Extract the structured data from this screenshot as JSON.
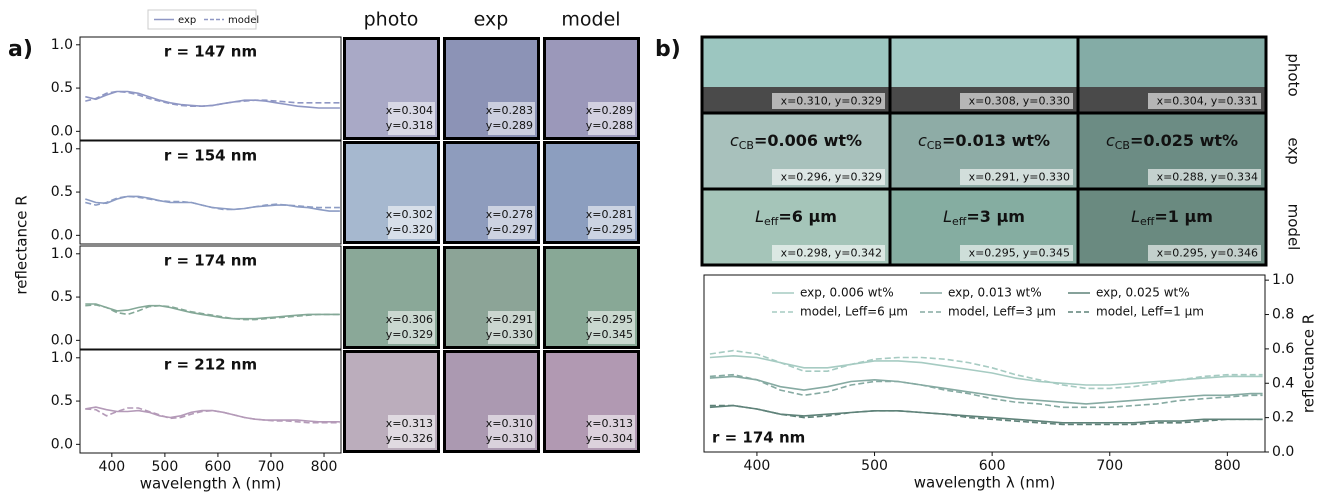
{
  "panel_labels": [
    "a)",
    "b)"
  ],
  "chart_data": [
    {
      "type": "line",
      "title": "r = 147 nm",
      "legend": "above",
      "ylabel": "reflectance R",
      "x": [
        350,
        370,
        390,
        410,
        430,
        450,
        470,
        490,
        510,
        530,
        550,
        570,
        590,
        610,
        630,
        650,
        670,
        690,
        710,
        730,
        750,
        770,
        790,
        810,
        830
      ],
      "xlim": [
        340,
        832
      ],
      "ylim": [
        -0.1,
        1.09
      ],
      "yticks": [
        {
          "value": 0,
          "label": "0.0"
        },
        0.5,
        {
          "value": 1,
          "label": "1.0"
        }
      ],
      "series": [
        {
          "name": "exp",
          "color": "#8f97c4",
          "dash": false,
          "values": [
            0.4,
            0.37,
            0.42,
            0.46,
            0.46,
            0.44,
            0.4,
            0.36,
            0.33,
            0.31,
            0.3,
            0.29,
            0.3,
            0.32,
            0.34,
            0.36,
            0.36,
            0.35,
            0.33,
            0.31,
            0.29,
            0.28,
            0.27,
            0.27,
            0.27
          ]
        },
        {
          "name": "model",
          "color": "#8f97c4",
          "dash": true,
          "values": [
            0.35,
            0.38,
            0.44,
            0.46,
            0.45,
            0.42,
            0.38,
            0.35,
            0.32,
            0.3,
            0.29,
            0.29,
            0.3,
            0.32,
            0.34,
            0.35,
            0.36,
            0.36,
            0.35,
            0.34,
            0.33,
            0.33,
            0.33,
            0.33,
            0.33
          ]
        }
      ]
    },
    {
      "type": "line",
      "title": "r = 154 nm",
      "x": [
        350,
        370,
        390,
        410,
        430,
        450,
        470,
        490,
        510,
        530,
        550,
        570,
        590,
        610,
        630,
        650,
        670,
        690,
        710,
        730,
        750,
        770,
        790,
        810,
        830
      ],
      "xlim": [
        340,
        832
      ],
      "ylim": [
        -0.1,
        1.09
      ],
      "yticks": [
        {
          "value": 0,
          "label": "0.0"
        },
        0.5,
        {
          "value": 1,
          "label": "1.0"
        }
      ],
      "series": [
        {
          "color": "#8c9cc4",
          "dash": false,
          "values": [
            0.42,
            0.38,
            0.37,
            0.42,
            0.45,
            0.45,
            0.43,
            0.4,
            0.38,
            0.38,
            0.38,
            0.35,
            0.32,
            0.31,
            0.3,
            0.31,
            0.33,
            0.34,
            0.35,
            0.35,
            0.33,
            0.32,
            0.3,
            0.28,
            0.28
          ]
        },
        {
          "color": "#8c9cc4",
          "dash": true,
          "values": [
            0.38,
            0.35,
            0.38,
            0.43,
            0.45,
            0.44,
            0.42,
            0.4,
            0.39,
            0.39,
            0.38,
            0.35,
            0.32,
            0.3,
            0.3,
            0.31,
            0.33,
            0.35,
            0.36,
            0.35,
            0.34,
            0.33,
            0.32,
            0.32,
            0.32
          ]
        }
      ]
    },
    {
      "type": "line",
      "title": "r = 174 nm",
      "x": [
        350,
        370,
        390,
        410,
        430,
        450,
        470,
        490,
        510,
        530,
        550,
        570,
        590,
        610,
        630,
        650,
        670,
        690,
        710,
        730,
        750,
        770,
        790,
        810,
        830
      ],
      "xlim": [
        340,
        832
      ],
      "ylim": [
        -0.1,
        1.09
      ],
      "yticks": [
        {
          "value": 0,
          "label": "0.0"
        },
        0.5,
        {
          "value": 1,
          "label": "1.0"
        }
      ],
      "series": [
        {
          "color": "#84a897",
          "dash": false,
          "values": [
            0.42,
            0.42,
            0.38,
            0.34,
            0.35,
            0.38,
            0.4,
            0.4,
            0.38,
            0.35,
            0.32,
            0.3,
            0.28,
            0.26,
            0.25,
            0.25,
            0.25,
            0.26,
            0.27,
            0.28,
            0.29,
            0.3,
            0.3,
            0.3,
            0.3
          ]
        },
        {
          "color": "#84a897",
          "dash": true,
          "values": [
            0.4,
            0.41,
            0.38,
            0.32,
            0.3,
            0.34,
            0.39,
            0.4,
            0.39,
            0.36,
            0.33,
            0.31,
            0.29,
            0.27,
            0.25,
            0.24,
            0.24,
            0.25,
            0.26,
            0.27,
            0.28,
            0.29,
            0.3,
            0.3,
            0.3
          ]
        }
      ]
    },
    {
      "type": "line",
      "title": "r = 212 nm",
      "xlabel": "wavelength λ (nm)",
      "x": [
        350,
        370,
        390,
        410,
        430,
        450,
        470,
        490,
        510,
        530,
        550,
        570,
        590,
        610,
        630,
        650,
        670,
        690,
        710,
        730,
        750,
        770,
        790,
        810,
        830
      ],
      "xlim": [
        340,
        832
      ],
      "ylim": [
        -0.1,
        1.09
      ],
      "xticks": [
        400,
        500,
        600,
        700,
        800
      ],
      "yticks": [
        {
          "value": 0,
          "label": "0.0"
        },
        0.5,
        {
          "value": 1,
          "label": "1.0"
        }
      ],
      "series": [
        {
          "color": "#b49ab8",
          "dash": false,
          "values": [
            0.41,
            0.43,
            0.4,
            0.38,
            0.38,
            0.39,
            0.37,
            0.33,
            0.31,
            0.33,
            0.37,
            0.39,
            0.39,
            0.37,
            0.34,
            0.31,
            0.29,
            0.28,
            0.28,
            0.28,
            0.28,
            0.27,
            0.26,
            0.26,
            0.26
          ]
        },
        {
          "color": "#b49ab8",
          "dash": true,
          "values": [
            0.41,
            0.4,
            0.33,
            0.38,
            0.42,
            0.42,
            0.38,
            0.34,
            0.3,
            0.31,
            0.35,
            0.38,
            0.39,
            0.37,
            0.34,
            0.31,
            0.29,
            0.28,
            0.27,
            0.27,
            0.26,
            0.25,
            0.25,
            0.25,
            0.25
          ]
        }
      ]
    },
    {
      "type": "line",
      "annotation": "r = 174 nm",
      "legend": "upper center",
      "yaxis": "right",
      "xlabel": "wavelength λ (nm)",
      "ylabel": "reflectance R",
      "x": [
        360,
        380,
        400,
        420,
        440,
        460,
        480,
        500,
        520,
        540,
        560,
        580,
        600,
        620,
        640,
        660,
        680,
        700,
        720,
        740,
        760,
        780,
        800,
        820,
        830
      ],
      "xlim": [
        355,
        832
      ],
      "ylim": [
        0,
        1.03
      ],
      "xticks": [
        400,
        500,
        600,
        700,
        800
      ],
      "yticks": [
        {
          "value": 0,
          "label": "0.0"
        },
        0.2,
        0.4,
        0.6,
        0.8,
        {
          "value": 1,
          "label": "1.0"
        }
      ],
      "series": [
        {
          "name": "exp, 0.006 wt%",
          "color": "#a6cbc2",
          "dash": false,
          "values": [
            0.55,
            0.56,
            0.55,
            0.52,
            0.49,
            0.49,
            0.51,
            0.53,
            0.53,
            0.52,
            0.5,
            0.48,
            0.46,
            0.43,
            0.41,
            0.4,
            0.39,
            0.39,
            0.4,
            0.41,
            0.42,
            0.43,
            0.44,
            0.44,
            0.44
          ]
        },
        {
          "name": "model, Leff=6 µm",
          "color": "#a6cbc2",
          "dash": true,
          "values": [
            0.57,
            0.59,
            0.57,
            0.52,
            0.47,
            0.47,
            0.51,
            0.54,
            0.55,
            0.55,
            0.54,
            0.52,
            0.49,
            0.45,
            0.42,
            0.39,
            0.37,
            0.37,
            0.38,
            0.4,
            0.42,
            0.44,
            0.45,
            0.45,
            0.45
          ]
        },
        {
          "name": "exp, 0.013 wt%",
          "color": "#86aaa2",
          "dash": false,
          "values": [
            0.43,
            0.44,
            0.42,
            0.38,
            0.36,
            0.38,
            0.41,
            0.42,
            0.41,
            0.39,
            0.37,
            0.35,
            0.33,
            0.31,
            0.3,
            0.29,
            0.28,
            0.29,
            0.3,
            0.31,
            0.32,
            0.33,
            0.33,
            0.34,
            0.34
          ]
        },
        {
          "name": "model, Leff=3 µm",
          "color": "#86aaa2",
          "dash": true,
          "values": [
            0.44,
            0.45,
            0.42,
            0.36,
            0.33,
            0.35,
            0.39,
            0.41,
            0.41,
            0.39,
            0.36,
            0.34,
            0.31,
            0.29,
            0.28,
            0.26,
            0.26,
            0.26,
            0.27,
            0.28,
            0.3,
            0.31,
            0.32,
            0.33,
            0.33
          ]
        },
        {
          "name": "exp, 0.025 wt%",
          "color": "#5f8279",
          "dash": false,
          "values": [
            0.26,
            0.27,
            0.25,
            0.22,
            0.21,
            0.22,
            0.23,
            0.24,
            0.24,
            0.23,
            0.22,
            0.21,
            0.2,
            0.19,
            0.18,
            0.17,
            0.17,
            0.17,
            0.17,
            0.18,
            0.18,
            0.19,
            0.19,
            0.19,
            0.19
          ]
        },
        {
          "name": "model, Leff=1 µm",
          "color": "#5f8279",
          "dash": true,
          "values": [
            0.27,
            0.27,
            0.25,
            0.22,
            0.2,
            0.21,
            0.23,
            0.24,
            0.24,
            0.23,
            0.22,
            0.2,
            0.19,
            0.18,
            0.17,
            0.16,
            0.16,
            0.16,
            0.16,
            0.17,
            0.17,
            0.18,
            0.19,
            0.19,
            0.19
          ]
        }
      ]
    }
  ],
  "swatches_a": {
    "columns": [
      "photo",
      "exp",
      "model"
    ],
    "rows": [
      [
        {
          "color": "#a9a9c6",
          "x": "x=0.304",
          "y": "y=0.318"
        },
        {
          "color": "#8c93b6",
          "x": "x=0.283",
          "y": "y=0.289"
        },
        {
          "color": "#9b98ba",
          "x": "x=0.289",
          "y": "y=0.288"
        }
      ],
      [
        {
          "color": "#a6b8cf",
          "x": "x=0.302",
          "y": "y=0.320"
        },
        {
          "color": "#8e9cbd",
          "x": "x=0.278",
          "y": "y=0.297"
        },
        {
          "color": "#8c9ebf",
          "x": "x=0.281",
          "y": "y=0.295"
        }
      ],
      [
        {
          "color": "#8aa898",
          "x": "x=0.306",
          "y": "y=0.329"
        },
        {
          "color": "#8ca497",
          "x": "x=0.291",
          "y": "y=0.330"
        },
        {
          "color": "#88a896",
          "x": "x=0.295",
          "y": "y=0.345"
        }
      ],
      [
        {
          "color": "#bbadbc",
          "x": "x=0.313",
          "y": "y=0.326"
        },
        {
          "color": "#ab99b1",
          "x": "x=0.310",
          "y": "y=0.310"
        },
        {
          "color": "#b199b2",
          "x": "x=0.313",
          "y": "y=0.304"
        }
      ]
    ]
  },
  "swatches_b": {
    "rows": [
      {
        "label": "photo",
        "cells": [
          {
            "color": "#9cc6c0",
            "coords": "x=0.310, y=0.329"
          },
          {
            "color": "#a2c9c4",
            "coords": "x=0.308, y=0.330"
          },
          {
            "color": "#84aca6",
            "coords": "x=0.304, y=0.331"
          }
        ]
      },
      {
        "label": "exp",
        "cells": [
          {
            "color": "#a8c1bc",
            "heading": {
              "symbol": "c",
              "subscript": "CB",
              "value": "=0.006 wt%"
            },
            "coords": "x=0.296, y=0.329"
          },
          {
            "color": "#8eaca6",
            "heading": {
              "symbol": "c",
              "subscript": "CB",
              "value": "=0.013 wt%"
            },
            "coords": "x=0.291, y=0.330"
          },
          {
            "color": "#6c8c84",
            "heading": {
              "symbol": "c",
              "subscript": "CB",
              "value": "=0.025 wt%"
            },
            "coords": "x=0.288, y=0.334"
          }
        ]
      },
      {
        "label": "model",
        "cells": [
          {
            "color": "#a5c5b9",
            "heading": {
              "symbol": "L",
              "subscript": "eff",
              "value": "=6 µm"
            },
            "coords": "x=0.298, y=0.342"
          },
          {
            "color": "#85ada1",
            "heading": {
              "symbol": "L",
              "subscript": "eff",
              "value": "=3 µm"
            },
            "coords": "x=0.295, y=0.345"
          },
          {
            "color": "#6a8a80",
            "heading": {
              "symbol": "L",
              "subscript": "eff",
              "value": "=1 µm"
            },
            "coords": "x=0.295, y=0.346"
          }
        ]
      }
    ]
  }
}
